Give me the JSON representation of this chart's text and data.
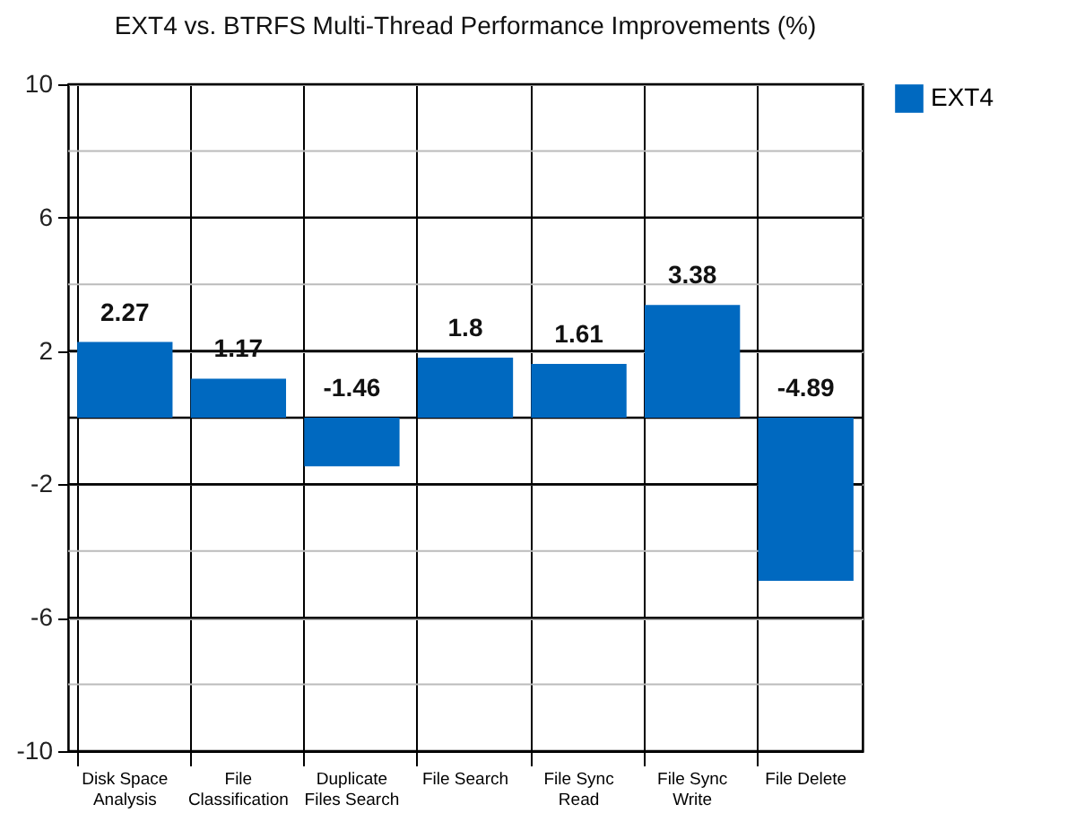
{
  "chart_data": {
    "type": "bar",
    "title": "EXT4 vs. BTRFS Multi-Thread Performance Improvements (%)",
    "categories": [
      "Disk Space Analysis",
      "File Classification",
      "Duplicate Files Search",
      "File Search",
      "File Sync Read",
      "File Sync Write",
      "File Delete"
    ],
    "series": [
      {
        "name": "EXT4",
        "color": "#0069c0",
        "values": [
          2.27,
          1.17,
          -1.46,
          1.8,
          1.61,
          3.38,
          -4.89
        ]
      }
    ],
    "ylim": [
      -10,
      10
    ],
    "yticks": [
      -10,
      {
        "value": -8,
        "label": null
      },
      -6,
      {
        "value": -4,
        "label": null
      },
      -2,
      {
        "value": 0,
        "label": null
      },
      2,
      {
        "value": 4,
        "label": null
      },
      6,
      {
        "value": 8,
        "label": null
      },
      10
    ],
    "grid": true,
    "legend": "right",
    "data_labels": true
  }
}
